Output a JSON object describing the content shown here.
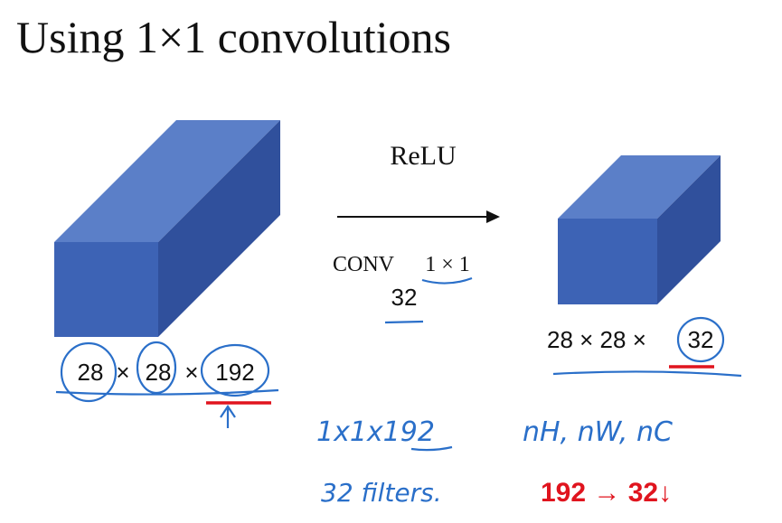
{
  "title": "Using 1×1 convolutions",
  "input_label": [
    "28",
    "×",
    "28",
    "×",
    "192"
  ],
  "output_label": [
    "28 × 28 ×",
    "32"
  ],
  "operation": {
    "activation": "ReLU",
    "layer": "CONV",
    "filter_size": "1 × 1",
    "filter_count": "32"
  },
  "annotations": {
    "filter_shape": "1x1x192",
    "dims": "nH, nW, nC",
    "filters": "32 filters.",
    "reduction": "192 → 32↓"
  }
}
